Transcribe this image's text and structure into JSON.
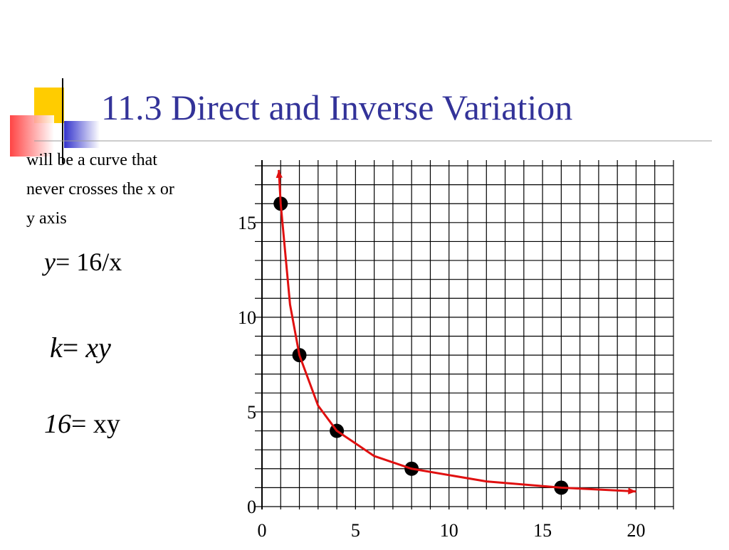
{
  "title": "11.3 Direct and Inverse Variation",
  "note_lines": [
    "will be a curve that",
    "never crosses the x or",
    "y axis"
  ],
  "equations": [
    [
      "y",
      "= 16/x"
    ],
    [
      "k",
      "= ",
      "xy"
    ],
    [
      "16",
      "= xy"
    ]
  ],
  "chart_data": {
    "type": "scatter",
    "xlim": [
      0,
      22
    ],
    "ylim": [
      0,
      18
    ],
    "xticks": [
      0,
      5,
      10,
      15,
      20
    ],
    "yticks": [
      0,
      5,
      10,
      15
    ],
    "grid": true,
    "grid_step": 1,
    "series": [
      {
        "color": "#000000",
        "x": [
          1,
          2,
          4,
          8,
          16
        ],
        "values": [
          16,
          8,
          4,
          2,
          1
        ]
      },
      {
        "color": "#e01010",
        "line": true,
        "x": [
          0.9,
          1,
          1.5,
          2,
          3,
          4,
          6,
          8,
          12,
          16,
          20
        ],
        "values": [
          17.78,
          16,
          10.67,
          8,
          5.33,
          4,
          2.67,
          2,
          1.33,
          1,
          0.8
        ]
      }
    ]
  }
}
